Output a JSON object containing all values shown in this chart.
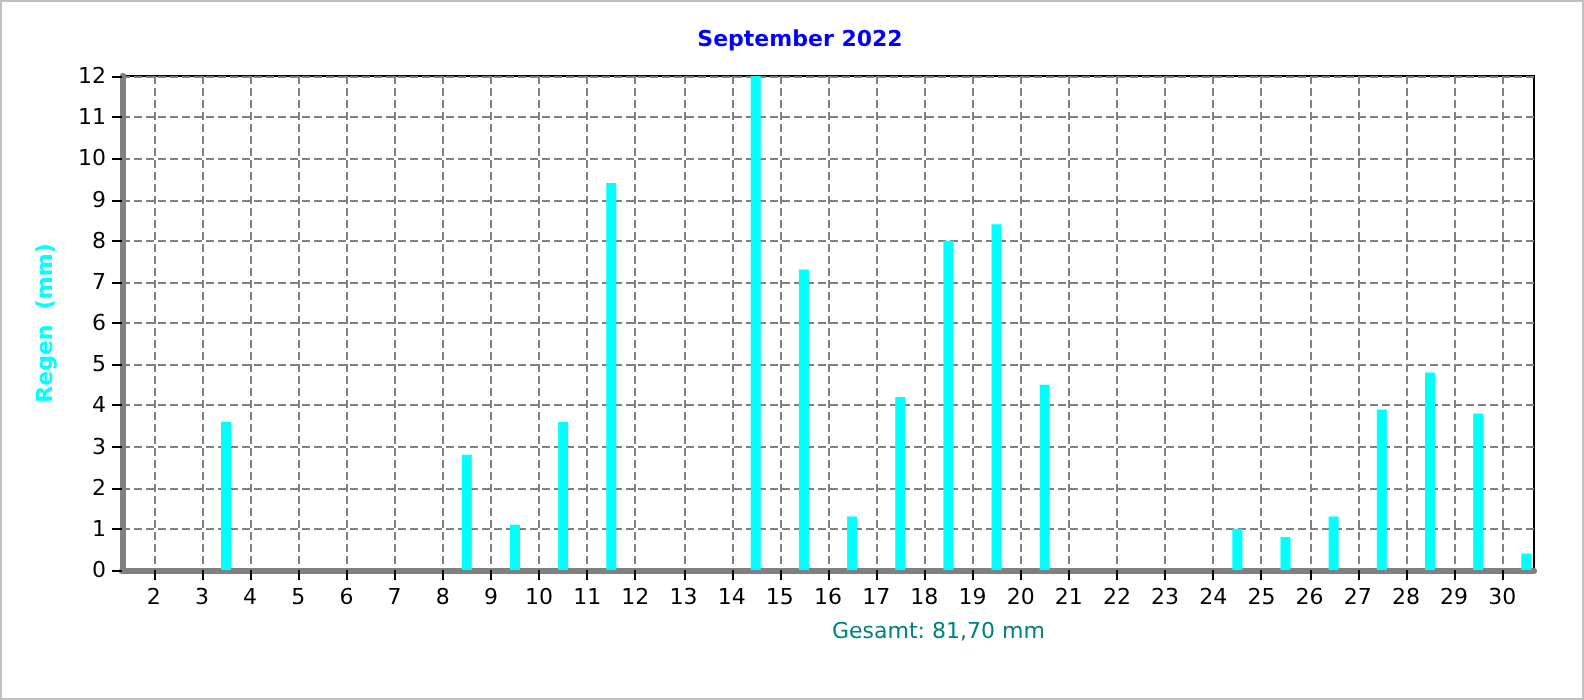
{
  "chart_data": {
    "type": "bar",
    "title": "September 2022",
    "ylabel": "Regen  (mm)",
    "annotations": [
      "Gesamt: 81,70 mm"
    ],
    "x": [
      1.5,
      2.5,
      3.5,
      4.5,
      5.5,
      6.5,
      7.5,
      8.5,
      9.5,
      10.5,
      11.5,
      12.5,
      13.5,
      14.5,
      15.5,
      16.5,
      17.5,
      18.5,
      19.5,
      20.5,
      21.5,
      22.5,
      23.5,
      24.5,
      25.5,
      26.5,
      27.5,
      28.5,
      29.5,
      30.5
    ],
    "values": [
      0,
      0,
      3.6,
      0,
      0,
      0,
      0,
      2.8,
      1.1,
      3.6,
      9.4,
      0,
      0,
      12,
      7.3,
      1.3,
      4.2,
      8,
      8.4,
      4.5,
      0,
      0,
      0,
      1,
      0.8,
      1.3,
      3.9,
      4.8,
      3.8,
      0.4
    ],
    "color": "#00ffff",
    "xlim": [
      1.34,
      30.66
    ],
    "xticks": [
      2,
      3,
      4,
      5,
      6,
      7,
      8,
      9,
      10,
      11,
      12,
      13,
      14,
      15,
      16,
      17,
      18,
      19,
      20,
      21,
      22,
      23,
      24,
      25,
      26,
      27,
      28,
      29,
      30
    ],
    "ylim": [
      0,
      12
    ],
    "yticks": [
      0,
      1,
      2,
      3,
      4,
      5,
      6,
      7,
      8,
      9,
      10,
      11,
      12
    ],
    "grid": true
  }
}
